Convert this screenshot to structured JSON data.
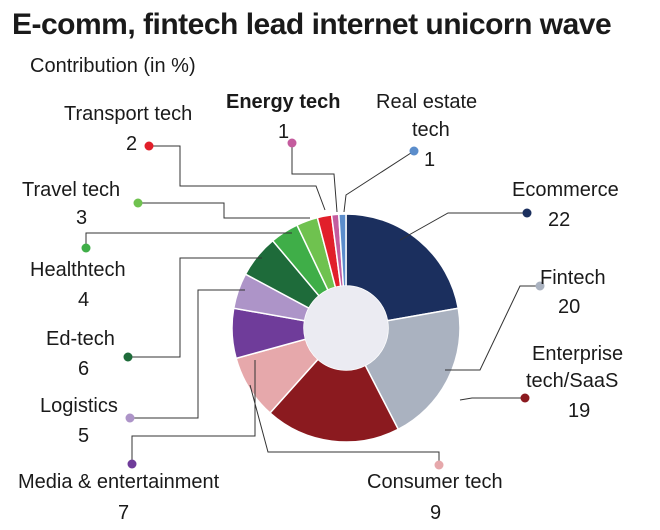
{
  "title": "E-comm, fintech lead internet unicorn wave",
  "subtitle": "Contribution (in %)",
  "chart_data": {
    "type": "pie",
    "title": "E-comm, fintech lead internet unicorn wave",
    "subtitle": "Contribution (in %)",
    "donut": true,
    "slices": [
      {
        "label": "Ecommerce",
        "value": 22,
        "color": "#1b2f5e"
      },
      {
        "label": "Fintech",
        "value": 20,
        "color": "#aab2c0"
      },
      {
        "label": "Enterprise tech/SaaS",
        "value": 19,
        "color": "#8b1a1f"
      },
      {
        "label": "Consumer tech",
        "value": 9,
        "color": "#e6a8ab"
      },
      {
        "label": "Media & entertainment",
        "value": 7,
        "color": "#6f3c9a"
      },
      {
        "label": "Logistics",
        "value": 5,
        "color": "#ad94c8"
      },
      {
        "label": "Ed-tech",
        "value": 6,
        "color": "#1e6b3a"
      },
      {
        "label": "Healthtech",
        "value": 4,
        "color": "#3fae48"
      },
      {
        "label": "Travel tech",
        "value": 3,
        "color": "#6fc24f"
      },
      {
        "label": "Transport tech",
        "value": 2,
        "color": "#e11f2a"
      },
      {
        "label": "Energy tech",
        "value": 1,
        "color": "#c45c9e"
      },
      {
        "label": "Real estate tech",
        "value": 1,
        "color": "#5b8dcb"
      }
    ]
  }
}
